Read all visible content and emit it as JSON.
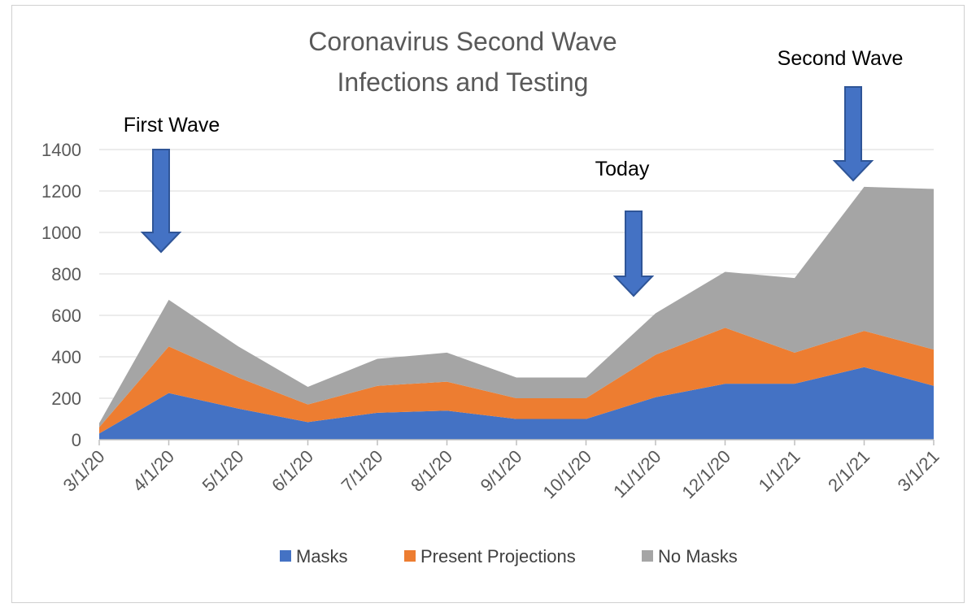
{
  "chart_data": {
    "type": "area",
    "stacked": true,
    "title": [
      "Coronavirus Second Wave",
      "Infections and Testing"
    ],
    "xlabel": "",
    "ylabel": "",
    "categories": [
      "3/1/20",
      "4/1/20",
      "5/1/20",
      "6/1/20",
      "7/1/20",
      "8/1/20",
      "9/1/20",
      "10/1/20",
      "11/1/20",
      "12/1/20",
      "1/1/21",
      "2/1/21",
      "3/1/21"
    ],
    "ylim": [
      0,
      1400
    ],
    "yticks": [
      0,
      200,
      400,
      600,
      800,
      1000,
      1200,
      1400
    ],
    "grid": true,
    "legend_position": "bottom",
    "series": [
      {
        "name": "Masks",
        "color": "#4472c4",
        "values": [
          30,
          225,
          150,
          85,
          130,
          140,
          100,
          100,
          205,
          270,
          270,
          350,
          260
        ]
      },
      {
        "name": "Present Projections",
        "color": "#ed7d31",
        "values": [
          30,
          225,
          150,
          85,
          130,
          140,
          100,
          100,
          205,
          270,
          150,
          175,
          175
        ]
      },
      {
        "name": "No Masks",
        "color": "#a5a5a5",
        "values": [
          20,
          225,
          150,
          85,
          130,
          140,
          100,
          100,
          200,
          270,
          360,
          695,
          775
        ]
      }
    ],
    "annotations": [
      {
        "text": "First Wave",
        "category_index": 1,
        "arrow_color": "#4472c4"
      },
      {
        "text": "Today",
        "category_index": 8,
        "arrow_color": "#4472c4"
      },
      {
        "text": "Second Wave",
        "category_index": 11,
        "arrow_color": "#4472c4"
      }
    ]
  }
}
